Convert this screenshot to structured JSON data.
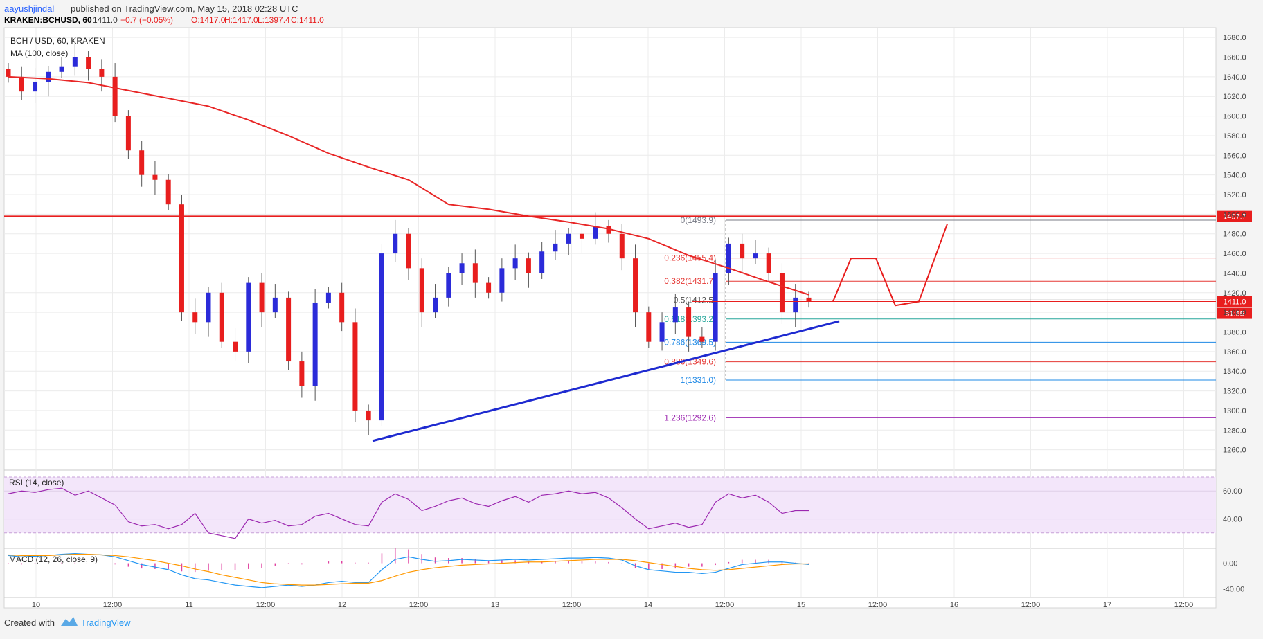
{
  "header": {
    "author": "aayushjindal",
    "published_text": "published on TradingView.com, May 15, 2018 02:28 UTC",
    "symbol": "KRAKEN:BCHUSD, 60",
    "last": "1411.0",
    "change": "−0.7 (−0.05%)",
    "open": "O:1417.0",
    "high": "H:1417.0",
    "low": "L:1397.4",
    "close": "C:1411.0"
  },
  "legend": {
    "pair": "BCH / USD, 60, KRAKEN",
    "ma": "MA (100, close)",
    "rsi": "RSI (14, close)",
    "macd": "MACD (12, 26, close, 9)"
  },
  "footer": {
    "created_with": "Created with",
    "brand": "TradingView"
  },
  "colors": {
    "up": "#2b2bd9",
    "down": "#e81e1e",
    "ma": "#e82626",
    "rsi": "#9c27b0",
    "macd": "#2196f3",
    "signal": "#ff9800",
    "hist": "#e040a0"
  },
  "chart_data": {
    "type": "candlestick",
    "price_ticks": [
      1260,
      1280,
      1300,
      1320,
      1340,
      1360,
      1380,
      1400,
      1420,
      1440,
      1460,
      1480,
      1500,
      1520,
      1540,
      1560,
      1580,
      1600,
      1620,
      1640,
      1660,
      1680
    ],
    "ylim": [
      1240,
      1690
    ],
    "x_ticks": [
      "10",
      "12:00",
      "11",
      "12:00",
      "12",
      "12:00",
      "13",
      "12:00",
      "14",
      "12:00",
      "15",
      "12:00",
      "16",
      "12:00",
      "17",
      "12:00"
    ],
    "resistance": 1497.7,
    "resistance_label": "1497.7",
    "last_price_label": "1411.0",
    "countdown_label": "31:55",
    "fib_levels": [
      {
        "ratio": "0",
        "value": 1493.9,
        "label": "0(1493.9)",
        "color": "#787b86"
      },
      {
        "ratio": "0.236",
        "value": 1455.4,
        "label": "0.236(1455.4)",
        "color": "#e53935"
      },
      {
        "ratio": "0.382",
        "value": 1431.7,
        "label": "0.382(1431.7)",
        "color": "#e53935"
      },
      {
        "ratio": "0.5",
        "value": 1412.5,
        "label": "0.5(1412.5)",
        "color": "#4a4a4a"
      },
      {
        "ratio": "0.618",
        "value": 1393.2,
        "label": "0.618(1393.2)",
        "color": "#26a69a"
      },
      {
        "ratio": "0.786",
        "value": 1369.5,
        "label": "0.786(1369.5)",
        "color": "#1e88e5"
      },
      {
        "ratio": "0.886",
        "value": 1349.6,
        "label": "0.886(1349.6)",
        "color": "#e53935"
      },
      {
        "ratio": "1",
        "value": 1331.0,
        "label": "1(1331.0)",
        "color": "#1e88e5"
      },
      {
        "ratio": "1.236",
        "value": 1292.6,
        "label": "1.236(1292.6)",
        "color": "#9c27b0"
      }
    ],
    "ma100": [
      1640,
      1638,
      1634,
      1626,
      1618,
      1610,
      1596,
      1580,
      1562,
      1548,
      1535,
      1510,
      1505,
      1498,
      1492,
      1485,
      1475,
      1458,
      1445,
      1431,
      1418
    ],
    "closes": [
      1640,
      1625,
      1635,
      1645,
      1650,
      1660,
      1648,
      1640,
      1600,
      1565,
      1540,
      1535,
      1510,
      1400,
      1390,
      1420,
      1370,
      1360,
      1430,
      1400,
      1415,
      1350,
      1325,
      1410,
      1420,
      1390,
      1300,
      1290,
      1460,
      1480,
      1445,
      1400,
      1415,
      1440,
      1450,
      1430,
      1420,
      1445,
      1455,
      1440,
      1462,
      1470,
      1480,
      1475,
      1488,
      1480,
      1455,
      1400,
      1370,
      1390,
      1405,
      1375,
      1370,
      1440,
      1470,
      1455,
      1460,
      1440,
      1400,
      1415,
      1411
    ],
    "rsi_ticks": [
      40,
      60
    ],
    "rsi_values": [
      58,
      60,
      59,
      61,
      62,
      57,
      60,
      55,
      50,
      38,
      35,
      36,
      33,
      36,
      44,
      30,
      28,
      26,
      40,
      37,
      39,
      35,
      36,
      42,
      44,
      40,
      36,
      35,
      52,
      58,
      54,
      46,
      49,
      53,
      55,
      51,
      49,
      53,
      56,
      52,
      57,
      58,
      60,
      58,
      59,
      55,
      48,
      40,
      33,
      35,
      37,
      34,
      36,
      52,
      58,
      55,
      57,
      52,
      44,
      46,
      46
    ],
    "macd_ticks": [
      0,
      -40
    ],
    "macd_values": [
      12,
      10,
      11,
      12,
      14,
      15,
      14,
      13,
      10,
      4,
      -2,
      -6,
      -10,
      -18,
      -24,
      -26,
      -30,
      -34,
      -36,
      -38,
      -36,
      -34,
      -36,
      -34,
      -30,
      -28,
      -30,
      -30,
      -10,
      6,
      10,
      6,
      3,
      4,
      6,
      5,
      4,
      5,
      6,
      5,
      6,
      7,
      8,
      8,
      9,
      8,
      5,
      -4,
      -10,
      -12,
      -14,
      -14,
      -16,
      -14,
      -8,
      -2,
      0,
      2,
      2,
      0,
      -2
    ],
    "signal_values": [
      13,
      12,
      12,
      12,
      13,
      14,
      14,
      13,
      12,
      10,
      7,
      4,
      0,
      -4,
      -9,
      -13,
      -18,
      -22,
      -26,
      -30,
      -32,
      -33,
      -34,
      -34,
      -33,
      -32,
      -31,
      -31,
      -27,
      -20,
      -14,
      -10,
      -7,
      -5,
      -3,
      -2,
      -1,
      0,
      1,
      2,
      2,
      3,
      4,
      5,
      6,
      6,
      6,
      4,
      1,
      -2,
      -5,
      -8,
      -10,
      -11,
      -10,
      -8,
      -6,
      -4,
      -2,
      -1,
      -1
    ]
  }
}
